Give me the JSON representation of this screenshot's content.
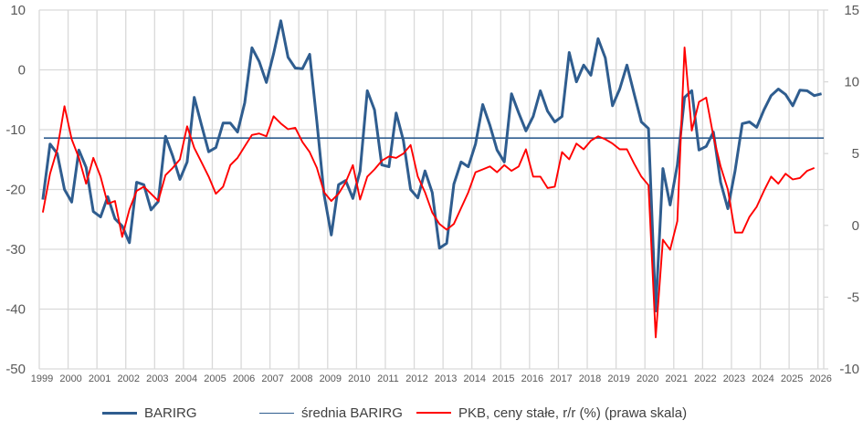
{
  "chart_data": {
    "type": "line",
    "title": "",
    "x_start": 1999.125,
    "x_step": 0.25,
    "x_tick_labels": [
      "1999",
      "2000",
      "2001",
      "2002",
      "2003",
      "2004",
      "2005",
      "2006",
      "2007",
      "2008",
      "2009",
      "2010",
      "2011",
      "2012",
      "2013",
      "2014",
      "2015",
      "2016",
      "2017",
      "2018",
      "2019",
      "2020",
      "2021",
      "2022",
      "2023",
      "2024",
      "2025",
      "2026"
    ],
    "xlim": [
      1999,
      2026.2
    ],
    "y_left": {
      "ylim": [
        -50,
        10
      ],
      "ticks": [
        10,
        0,
        -10,
        -20,
        -30,
        -40,
        -50
      ],
      "tick_labels": [
        "10",
        "0",
        "-10",
        "-20",
        "-30",
        "-40",
        "-50"
      ]
    },
    "y_right": {
      "ylim": [
        -10,
        15
      ],
      "ticks": [
        15,
        10,
        5,
        0,
        -5,
        -10
      ],
      "tick_labels": [
        "15",
        "10",
        "5",
        "0",
        "-5",
        "-10"
      ]
    },
    "grid": true,
    "legend_position": "bottom",
    "series": [
      {
        "name": "BARIRG",
        "axis": "left",
        "color": "#2f5d8f",
        "values": [
          -21.7,
          -12.4,
          -14.0,
          -20.0,
          -22.1,
          -13.4,
          -16.3,
          -23.7,
          -24.6,
          -21.2,
          -24.9,
          -26.1,
          -28.9,
          -18.8,
          -19.2,
          -23.4,
          -22.0,
          -11.1,
          -14.4,
          -18.3,
          -15.4,
          -4.6,
          -9.2,
          -13.7,
          -13.0,
          -8.9,
          -8.9,
          -10.4,
          -5.5,
          3.7,
          1.4,
          -2.1,
          2.7,
          8.2,
          2.1,
          0.3,
          0.2,
          2.6,
          -8.7,
          -20.9,
          -27.6,
          -19.2,
          -18.5,
          -21.5,
          -16.9,
          -3.5,
          -6.7,
          -15.9,
          -16.2,
          -7.2,
          -11.8,
          -20.0,
          -21.4,
          -16.9,
          -20.5,
          -29.8,
          -29.0,
          -19.1,
          -15.4,
          -16.2,
          -12.4,
          -5.8,
          -9.3,
          -13.4,
          -15.4,
          -4.0,
          -7.2,
          -10.2,
          -7.8,
          -3.5,
          -6.9,
          -8.7,
          -7.8,
          2.9,
          -2.0,
          0.8,
          -0.9,
          5.2,
          2.0,
          -6.0,
          -3.2,
          0.8,
          -4.0,
          -8.7,
          -9.8,
          -40.3,
          -16.5,
          -22.6,
          -15.9,
          -4.6,
          -3.5,
          -13.4,
          -12.8,
          -10.4,
          -18.8,
          -23.2,
          -16.9,
          -9.0,
          -8.7,
          -9.6,
          -6.7,
          -4.3,
          -3.2,
          -4.1,
          -6.0,
          -3.4,
          -3.5,
          -4.3,
          -4.0
        ]
      },
      {
        "name": "średnia BARIRG",
        "axis": "left",
        "color": "#2f5d8f",
        "constant": -11.4
      },
      {
        "name": "PKB, ceny stałe, r/r (%) (prawa skala)",
        "axis": "right",
        "color": "#ff0000",
        "values": [
          0.9,
          3.6,
          5.3,
          8.3,
          6.0,
          4.7,
          2.9,
          4.7,
          3.4,
          1.5,
          1.7,
          -0.8,
          1.1,
          2.4,
          2.7,
          2.2,
          1.7,
          3.5,
          4.0,
          4.6,
          6.9,
          5.4,
          4.4,
          3.4,
          2.2,
          2.7,
          4.2,
          4.7,
          5.5,
          6.3,
          6.4,
          6.2,
          7.6,
          7.1,
          6.7,
          6.8,
          5.8,
          5.1,
          4.0,
          2.3,
          1.7,
          2.2,
          3.0,
          4.2,
          1.8,
          3.4,
          3.9,
          4.5,
          4.8,
          4.7,
          5.0,
          5.6,
          3.4,
          2.3,
          0.9,
          0.1,
          -0.3,
          0.1,
          1.2,
          2.3,
          3.7,
          3.9,
          4.1,
          3.7,
          4.2,
          3.8,
          4.1,
          5.3,
          3.4,
          3.4,
          2.6,
          2.7,
          5.1,
          4.6,
          5.7,
          5.3,
          5.9,
          6.2,
          6.0,
          5.7,
          5.3,
          5.3,
          4.3,
          3.4,
          2.8,
          -7.8,
          -1.0,
          -1.7,
          0.3,
          12.4,
          6.6,
          8.6,
          8.9,
          6.2,
          4.1,
          2.5,
          -0.5,
          -0.5,
          0.6,
          1.3,
          2.4,
          3.4,
          2.9,
          3.6,
          3.2,
          3.3,
          3.8,
          4.0
        ]
      }
    ]
  },
  "legend": {
    "items": [
      "BARIRG",
      "średnia BARIRG",
      "PKB, ceny stałe, r/r (%) (prawa skala)"
    ]
  }
}
